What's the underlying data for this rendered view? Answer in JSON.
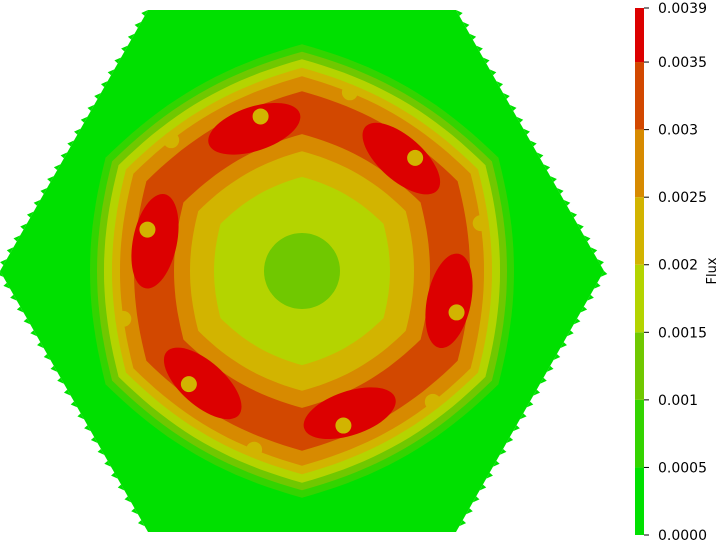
{
  "chart_data": {
    "type": "heatmap",
    "field_name": "Flux",
    "colorbar": {
      "title": "Flux",
      "range": [
        0.0,
        0.0039
      ],
      "ticks": [
        "0.0039",
        "0.0035",
        "0.003",
        "0.0025",
        "0.002",
        "0.0015",
        "0.001",
        "0.0005",
        "0.0000"
      ],
      "tick_values": [
        0.0039,
        0.0035,
        0.003,
        0.0025,
        0.002,
        0.0015,
        0.001,
        0.0005,
        0.0
      ],
      "placement": "right"
    },
    "levels": [
      {
        "from": 0.0,
        "to": 0.0005,
        "color": "#00e000"
      },
      {
        "from": 0.0005,
        "to": 0.001,
        "color": "#33d400"
      },
      {
        "from": 0.001,
        "to": 0.0015,
        "color": "#70c800"
      },
      {
        "from": 0.0015,
        "to": 0.002,
        "color": "#b4d400"
      },
      {
        "from": 0.002,
        "to": 0.0025,
        "color": "#d2b400"
      },
      {
        "from": 0.0025,
        "to": 0.003,
        "color": "#d78a00"
      },
      {
        "from": 0.003,
        "to": 0.0035,
        "color": "#d24800"
      },
      {
        "from": 0.0035,
        "to": 0.0039,
        "color": "#dc0000"
      }
    ],
    "domain_shape": "hexagon",
    "background_value": 0.0002,
    "center_value": 0.0012,
    "peak_regions_count": 6,
    "peak_value": 0.0037,
    "spot_value": 0.0022,
    "spot_count": 12
  }
}
